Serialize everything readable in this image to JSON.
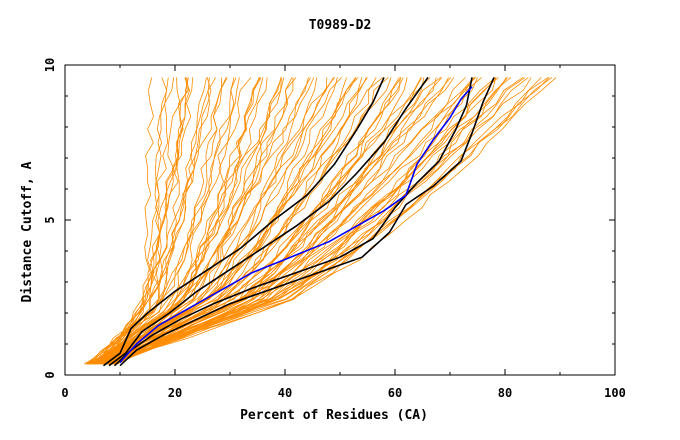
{
  "chart_data": {
    "type": "line",
    "title": "T0989-D2",
    "xlabel": "Percent of Residues (CA)",
    "ylabel": "Distance Cutoff, A",
    "xlim": [
      0,
      100
    ],
    "ylim": [
      0,
      10
    ],
    "x_ticks": [
      "0",
      "20",
      "40",
      "60",
      "80",
      "100"
    ],
    "y_ticks": [
      "0",
      "5",
      "10"
    ],
    "grid": false,
    "colors": {
      "background_series": "#ff8c00",
      "highlight_black": "#000000",
      "highlight_blue": "#0000ff"
    },
    "background_series_count": 90,
    "highlighted_series": [
      {
        "color": "#000000",
        "points": [
          [
            7,
            0.3
          ],
          [
            10,
            0.7
          ],
          [
            12,
            1.5
          ],
          [
            15,
            2.0
          ],
          [
            20,
            2.7
          ],
          [
            26,
            3.4
          ],
          [
            32,
            4.1
          ],
          [
            38,
            5.0
          ],
          [
            44,
            5.8
          ],
          [
            49,
            6.8
          ],
          [
            53,
            7.9
          ],
          [
            56,
            8.8
          ],
          [
            58,
            9.6
          ]
        ]
      },
      {
        "color": "#000000",
        "points": [
          [
            8,
            0.3
          ],
          [
            11,
            0.7
          ],
          [
            14,
            1.4
          ],
          [
            19,
            2.0
          ],
          [
            24,
            2.7
          ],
          [
            30,
            3.4
          ],
          [
            36,
            4.1
          ],
          [
            42,
            4.8
          ],
          [
            48,
            5.6
          ],
          [
            53,
            6.5
          ],
          [
            58,
            7.5
          ],
          [
            62,
            8.6
          ],
          [
            66,
            9.6
          ]
        ]
      },
      {
        "color": "#000000",
        "points": [
          [
            9,
            0.3
          ],
          [
            12,
            0.8
          ],
          [
            16,
            1.3
          ],
          [
            21,
            1.8
          ],
          [
            27,
            2.3
          ],
          [
            34,
            2.8
          ],
          [
            42,
            3.3
          ],
          [
            50,
            3.8
          ],
          [
            56,
            4.4
          ],
          [
            60,
            5.4
          ],
          [
            64,
            6.2
          ],
          [
            68,
            6.9
          ],
          [
            71,
            7.9
          ],
          [
            73,
            8.7
          ],
          [
            74,
            9.6
          ]
        ]
      },
      {
        "color": "#000000",
        "points": [
          [
            10,
            0.3
          ],
          [
            13,
            0.8
          ],
          [
            18,
            1.3
          ],
          [
            24,
            1.8
          ],
          [
            30,
            2.3
          ],
          [
            38,
            2.8
          ],
          [
            46,
            3.3
          ],
          [
            54,
            3.8
          ],
          [
            59,
            4.6
          ],
          [
            62,
            5.5
          ],
          [
            67,
            6.1
          ],
          [
            72,
            6.9
          ],
          [
            74,
            7.8
          ],
          [
            76,
            8.8
          ],
          [
            78,
            9.6
          ]
        ]
      },
      {
        "color": "#0000ff",
        "points": [
          [
            10,
            0.4
          ],
          [
            13,
            1.0
          ],
          [
            17,
            1.6
          ],
          [
            22,
            2.1
          ],
          [
            28,
            2.7
          ],
          [
            34,
            3.3
          ],
          [
            41,
            3.8
          ],
          [
            48,
            4.3
          ],
          [
            54,
            4.9
          ],
          [
            58,
            5.3
          ],
          [
            62,
            5.8
          ],
          [
            64,
            6.8
          ],
          [
            67,
            7.6
          ],
          [
            70,
            8.3
          ],
          [
            72,
            8.9
          ],
          [
            74,
            9.3
          ]
        ]
      }
    ]
  }
}
